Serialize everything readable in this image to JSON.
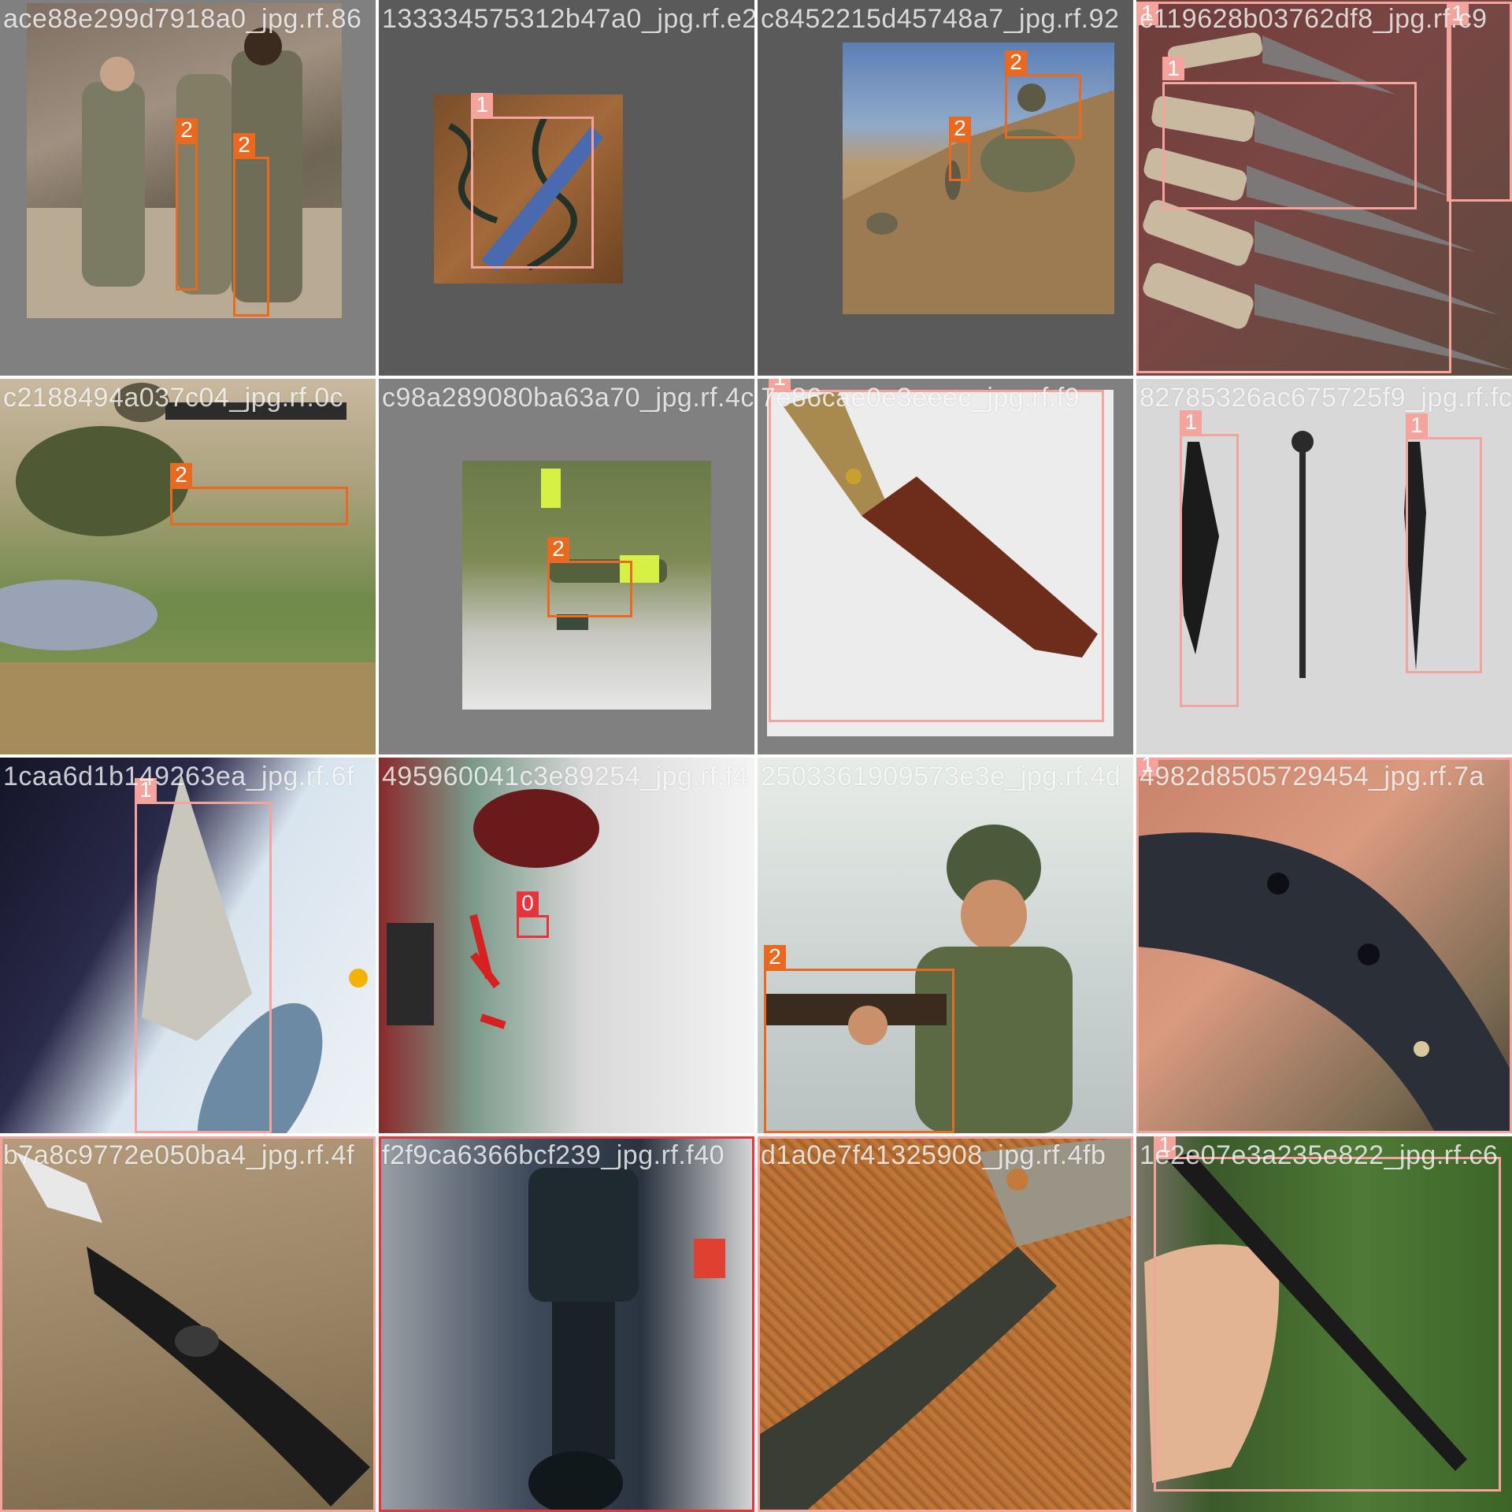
{
  "tiles": [
    {
      "filename": "ace88e299d7918a0_jpg.rf.86",
      "scene": "soldiers-indoor"
    },
    {
      "filename": "133334575312b47a0_jpg.rf.e2",
      "scene": "knife-on-wood"
    },
    {
      "filename": "c8452215d45748a7_jpg.rf.92",
      "scene": "soldiers-hillside"
    },
    {
      "filename": "c119628b03762df8_jpg.rf.c9",
      "scene": "knife-collection"
    },
    {
      "filename": "c2188494a037c04_jpg.rf.0c",
      "scene": "soldier-rifle-grass"
    },
    {
      "filename": "c98a289080ba63a70_jpg.rf.4c",
      "scene": "range-prone-shooter"
    },
    {
      "filename": "7e86cae0e3eeec_jpg.rf.f9",
      "scene": "knife-leather-sheath"
    },
    {
      "filename": "82785326ac675725f9_jpg.rf.fc",
      "scene": "three-daggers"
    },
    {
      "filename": "1caa6d1b149263ea_jpg.rf.6f",
      "scene": "fish-knife-sign"
    },
    {
      "filename": "495960041c3e89254_jpg.rf.f4",
      "scene": "shooting-range"
    },
    {
      "filename": "2503361909573e3e_jpg.rf.4d",
      "scene": "soldier-ak"
    },
    {
      "filename": "4982d8505729454_jpg.rf.7a",
      "scene": "knife-handle-hand"
    },
    {
      "filename": "b7a8c9772e050ba4_jpg.rf.4f",
      "scene": "folding-knife-wood"
    },
    {
      "filename": "f2f9ca6366bcf239_jpg.rf.f40",
      "scene": "revolver"
    },
    {
      "filename": "d1a0e7f41325908_jpg.rf.4fb",
      "scene": "buck-knife-mat"
    },
    {
      "filename": "1e2e07e3a235e822_jpg.rf.c6",
      "scene": "spike-in-hand"
    }
  ],
  "boxes": [
    [
      {
        "class": "2"
      },
      {
        "class": "2"
      }
    ],
    [
      {
        "class": "1"
      }
    ],
    [
      {
        "class": "2"
      },
      {
        "class": "2"
      }
    ],
    [
      {
        "class": "1"
      },
      {
        "class": "1"
      },
      {
        "class": "1"
      }
    ],
    [
      {
        "class": "2"
      }
    ],
    [
      {
        "class": "2"
      }
    ],
    [
      {
        "class": "1"
      }
    ],
    [
      {
        "class": "1"
      },
      {
        "class": "1"
      }
    ],
    [
      {
        "class": "1"
      }
    ],
    [
      {
        "class": "0"
      }
    ],
    [
      {
        "class": "2"
      }
    ],
    [
      {
        "class": "1"
      }
    ],
    [
      {
        "class": "1"
      }
    ],
    [
      {
        "class": "0"
      }
    ],
    [
      {
        "class": "1"
      }
    ],
    [
      {
        "class": "1"
      }
    ]
  ],
  "colors": {
    "class_0": "#e8323c",
    "class_1": "#f4a49c",
    "class_2": "#e8691f",
    "padding": "#808080",
    "label_text": "#ffffff"
  }
}
